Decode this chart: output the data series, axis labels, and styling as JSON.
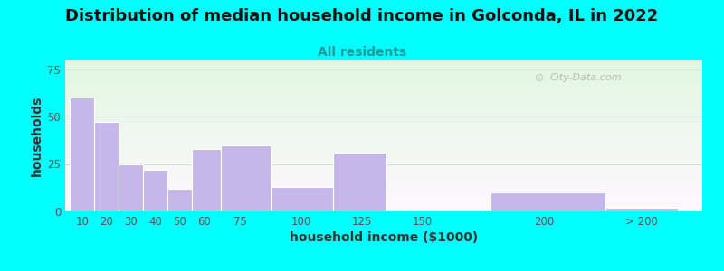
{
  "title": "Distribution of median household income in Golconda, IL in 2022",
  "subtitle": "All residents",
  "xlabel": "household income ($1000)",
  "ylabel": "households",
  "background_outer": "#00FFFF",
  "bar_color": "#c5b8e8",
  "bar_edge_color": "#ffffff",
  "categories": [
    "10",
    "20",
    "30",
    "40",
    "50",
    "60",
    "75",
    "100",
    "125",
    "150",
    "200",
    "> 200"
  ],
  "values": [
    60,
    47,
    25,
    22,
    12,
    33,
    35,
    13,
    31,
    0,
    10,
    2
  ],
  "bar_lefts": [
    5,
    15,
    25,
    35,
    45,
    55,
    67,
    88,
    113,
    140,
    178,
    225
  ],
  "bar_widths": [
    10,
    10,
    10,
    10,
    10,
    12,
    21,
    25,
    22,
    38,
    47,
    30
  ],
  "xtick_positions": [
    10,
    20,
    30,
    40,
    50,
    60,
    75,
    100,
    125,
    150,
    200,
    240
  ],
  "xlim": [
    3,
    265
  ],
  "ylim": [
    0,
    80
  ],
  "yticks": [
    0,
    25,
    50,
    75
  ],
  "watermark": "City-Data.com",
  "title_fontsize": 13,
  "subtitle_fontsize": 10,
  "axis_label_fontsize": 10,
  "tick_fontsize": 8.5
}
